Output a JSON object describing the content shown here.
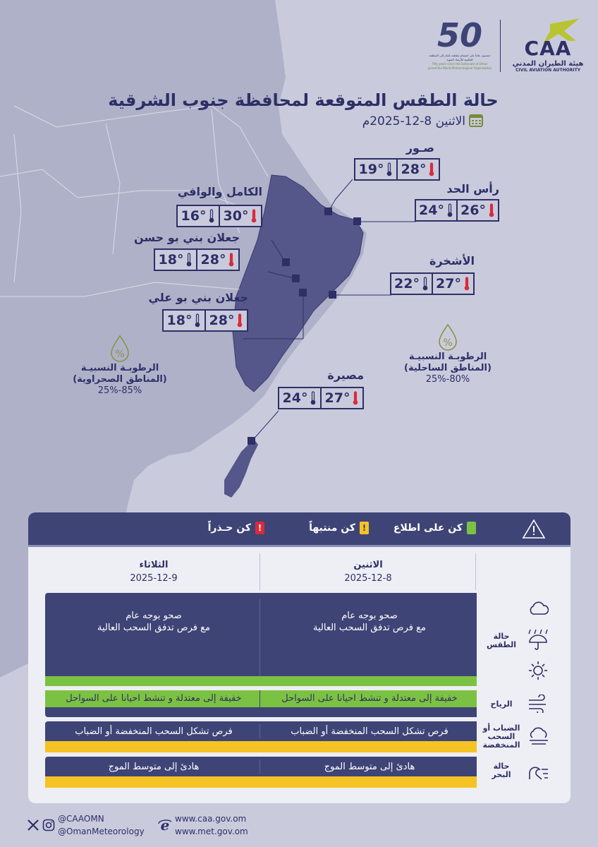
{
  "header": {
    "caa_logo_text": "CAA",
    "caa_name_ar": "هيئة الطيران المدني",
    "caa_name_en": "CIVIL AVIATION AUTHORITY",
    "anniversary_logo": "50",
    "anniversary_ar": "خمسون عاماً على انضمام سلطنة عُمان إلى المنظمة العالمية للأرصاد الجوية",
    "anniversary_en": "Fifty years since the Sultanate of Oman joined the World Meteorological Organization"
  },
  "title": "حالة الطقس المتوقعة لمحافظة جنوب الشرقية",
  "date": "الاثنين 8-12-2025م",
  "cities": [
    {
      "name": "صـور",
      "max": "28°",
      "min": "19°"
    },
    {
      "name": "رأس الحد",
      "max": "26°",
      "min": "24°"
    },
    {
      "name": "الكامل والوافي",
      "max": "30°",
      "min": "16°"
    },
    {
      "name": "جعلان بني بو حسن",
      "max": "28°",
      "min": "18°"
    },
    {
      "name": "الأشخرة",
      "max": "27°",
      "min": "22°"
    },
    {
      "name": "جعلان بني بو علي",
      "max": "28°",
      "min": "18°"
    },
    {
      "name": "مصيرة",
      "max": "27°",
      "min": "24°"
    }
  ],
  "humidity": {
    "desert_label_1": "الرطوبـة النسبيـة",
    "desert_label_2": "(المناطق الصحراوية)",
    "desert_value": "25%-85%",
    "coastal_label_1": "الرطوبـة النسبيـة",
    "coastal_label_2": "(المناطق الساحلية)",
    "coastal_value": "25%-80%",
    "icon_symbol": "%"
  },
  "legend": {
    "info": "كن على اطلاع",
    "watch": "كن منتبهاً",
    "warning": "كن حـذراً",
    "alert_symbol": "!",
    "colors": {
      "info": "#7cc242",
      "watch": "#f5c324",
      "warning": "#d92b3a"
    }
  },
  "days": [
    {
      "name": "الاثنين",
      "date": "2025-12-8"
    },
    {
      "name": "الثلاثاء",
      "date": "2025-12-9"
    }
  ],
  "rows": {
    "weather": {
      "label": "حالة الطقس",
      "day1_line1": "صحو بوجه عام",
      "day1_line2": "مع فرص تدفق السحب العالية",
      "day2_line1": "صحو بوجه عام",
      "day2_line2": "مع فرص تدفق السحب العالية",
      "day1_level": "info",
      "day2_level": "info"
    },
    "wind": {
      "label": "الرياح",
      "day1": "خفيفة إلى معتدلة و تنشط احيانا على السواحل",
      "day2": "خفيفة إلى معتدلة و تنشط احيانا على السواحل",
      "day1_level": "info",
      "day2_level": "info"
    },
    "fog": {
      "label": "الضباب أو السحب المنخفضة",
      "day1": "فرص تشكل السحب المنخفضة أو الضباب",
      "day2": "فرص تشكل السحب المنخفضة أو الضباب",
      "day1_level": "watch",
      "day2_level": "watch"
    },
    "sea": {
      "label": "حالة البحر",
      "day1": "هادئ إلى متوسط  الموج",
      "day2": "هادئ إلى متوسط  الموج",
      "day1_level": "watch",
      "day2_level": "watch"
    }
  },
  "footer": {
    "social_1": "@CAAOMN",
    "social_2": "@OmanMeteorology",
    "web_1": "www.caa.gov.om",
    "web_2": "www.met.gov.om"
  }
}
